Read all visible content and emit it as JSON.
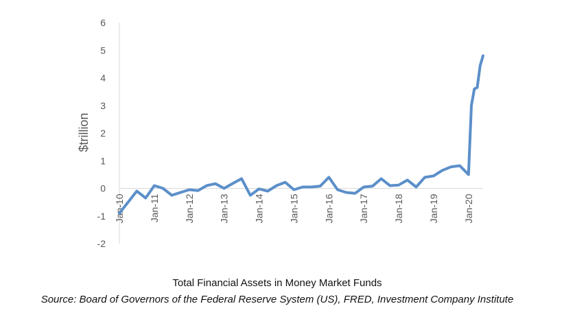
{
  "caption": {
    "title": "Total Financial Assets in Money Market Funds",
    "source": "Source: Board of Governors of the Federal Reserve System (US), FRED, Investment Company Institute"
  },
  "chart_data": {
    "type": "line",
    "title": "Total Financial Assets in Money Market Funds",
    "xlabel": "",
    "ylabel": "$trillion",
    "ylim": [
      -2,
      6
    ],
    "yticks": [
      -2,
      -1,
      0,
      1,
      2,
      3,
      4,
      5,
      6
    ],
    "xlim": [
      "2010-01",
      "2020-06"
    ],
    "xticks": [
      "Jan-10",
      "Jan-11",
      "Jan-12",
      "Jan-13",
      "Jan-14",
      "Jan-15",
      "Jan-16",
      "Jan-17",
      "Jan-18",
      "Jan-19",
      "Jan-20"
    ],
    "grid": false,
    "legend": "none",
    "line_color": "#5b8fc9",
    "series": [
      {
        "x": [
          "2010-01",
          "2010-04",
          "2010-07",
          "2010-10",
          "2011-01",
          "2011-04",
          "2011-07",
          "2011-10",
          "2012-01",
          "2012-04",
          "2012-07",
          "2012-10",
          "2013-01",
          "2013-04",
          "2013-07",
          "2013-10",
          "2014-01",
          "2014-04",
          "2014-07",
          "2014-10",
          "2015-01",
          "2015-04",
          "2015-07",
          "2015-10",
          "2016-01",
          "2016-04",
          "2016-07",
          "2016-10",
          "2017-01",
          "2017-04",
          "2017-07",
          "2017-10",
          "2018-01",
          "2018-04",
          "2018-07",
          "2018-10",
          "2019-01",
          "2019-04",
          "2019-07",
          "2019-10",
          "2020-01",
          "2020-02",
          "2020-03",
          "2020-04",
          "2020-05",
          "2020-06"
        ],
        "values": [
          -0.9,
          -0.5,
          -0.1,
          -0.35,
          0.1,
          0.0,
          -0.25,
          -0.15,
          -0.05,
          -0.08,
          0.1,
          0.17,
          0.0,
          0.18,
          0.35,
          -0.25,
          -0.02,
          -0.1,
          0.1,
          0.22,
          -0.05,
          0.05,
          0.05,
          0.08,
          0.4,
          -0.05,
          -0.15,
          -0.18,
          0.05,
          0.08,
          0.35,
          0.1,
          0.12,
          0.3,
          0.05,
          0.4,
          0.45,
          0.65,
          0.78,
          0.82,
          0.5,
          3.0,
          3.6,
          3.65,
          4.45,
          4.8
        ]
      }
    ]
  }
}
